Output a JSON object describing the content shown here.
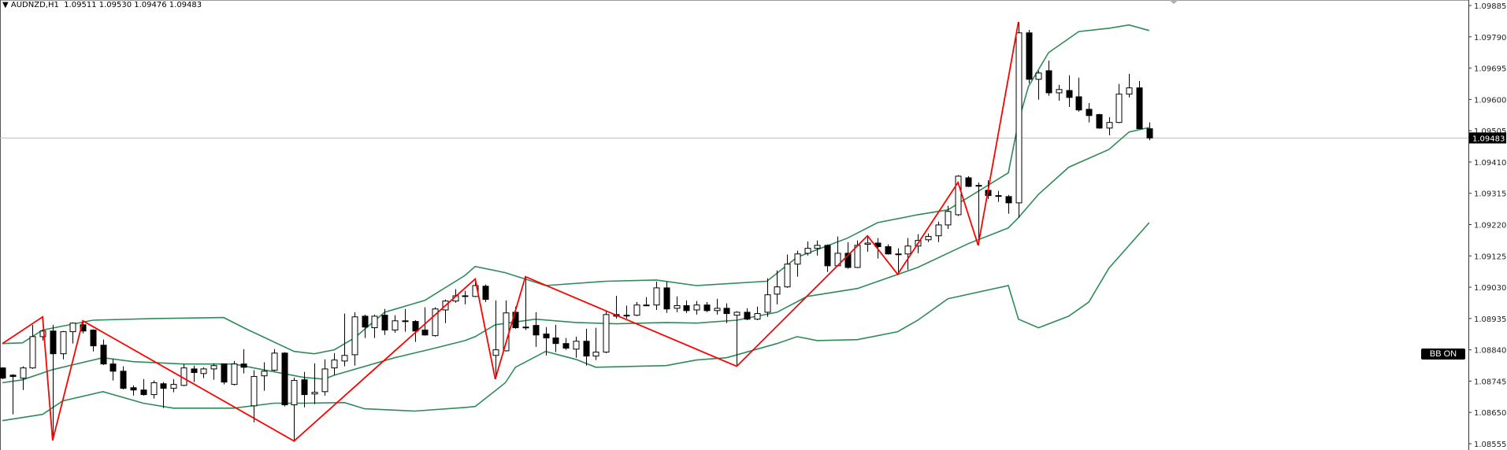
{
  "header": {
    "symbol_timeframe": "AUDNZD,H1",
    "ohlc": "1.09511 1.09530 1.09476 1.09483",
    "menu_icon": "triangle-down-icon"
  },
  "bb_button": {
    "label": "BB ON"
  },
  "current_price_label": "1.09483",
  "colors": {
    "candle_bear": "#000000",
    "candle_bull": "#ffffff",
    "candle_outline": "#000000",
    "bollinger": "#2e8b57",
    "zigzag": "#ff0000",
    "price_line": "#c0c0c0"
  },
  "chart_data": {
    "type": "candlestick",
    "symbol": "AUDNZD",
    "timeframe": "H1",
    "ylim": [
      1.08555,
      1.09885
    ],
    "y_ticks": [
      "1.09885",
      "1.09790",
      "1.09695",
      "1.09600",
      "1.09505",
      "1.09410",
      "1.09315",
      "1.09220",
      "1.09125",
      "1.09030",
      "1.08935",
      "1.08840",
      "1.08745",
      "1.08650",
      "1.08555"
    ],
    "current_price": 1.09483,
    "candles_ohlc": [
      [
        1.08785,
        1.08787,
        1.08751,
        1.08754
      ],
      [
        1.08763,
        1.08766,
        1.08644,
        1.08759
      ],
      [
        1.08754,
        1.0879,
        1.08718,
        1.08785
      ],
      [
        1.08785,
        1.08916,
        1.08782,
        1.0888
      ],
      [
        1.0888,
        1.089,
        1.08868,
        1.08897
      ],
      [
        1.08897,
        1.08916,
        1.08565,
        1.08828
      ],
      [
        1.08828,
        1.08897,
        1.08811,
        1.08895
      ],
      [
        1.08895,
        1.08923,
        1.08859,
        1.08921
      ],
      [
        1.08916,
        1.08928,
        1.0889,
        1.08897
      ],
      [
        1.089,
        1.08902,
        1.08835,
        1.08852
      ],
      [
        1.08854,
        1.08871,
        1.08794,
        1.08797
      ],
      [
        1.08797,
        1.08813,
        1.08747,
        1.08775
      ],
      [
        1.08775,
        1.0879,
        1.0872,
        1.08723
      ],
      [
        1.08725,
        1.08732,
        1.08701,
        1.08718
      ],
      [
        1.08718,
        1.08751,
        1.08701,
        1.08704
      ],
      [
        1.08704,
        1.08747,
        1.08692,
        1.0874
      ],
      [
        1.08737,
        1.08742,
        1.08663,
        1.08723
      ],
      [
        1.08723,
        1.08751,
        1.08711,
        1.08735
      ],
      [
        1.08732,
        1.08797,
        1.0873,
        1.08785
      ],
      [
        1.08782,
        1.08792,
        1.08742,
        1.08771
      ],
      [
        1.08768,
        1.08787,
        1.08754,
        1.08782
      ],
      [
        1.08782,
        1.08799,
        1.08749,
        1.08792
      ],
      [
        1.08797,
        1.08799,
        1.08735,
        1.08742
      ],
      [
        1.08735,
        1.08806,
        1.08732,
        1.08797
      ],
      [
        1.08797,
        1.08842,
        1.08768,
        1.08787
      ],
      [
        1.0867,
        1.08778,
        1.0862,
        1.08759
      ],
      [
        1.08761,
        1.08802,
        1.08716,
        1.08775
      ],
      [
        1.08778,
        1.08842,
        1.08775,
        1.0883
      ],
      [
        1.0883,
        1.08833,
        1.08668,
        1.08673
      ],
      [
        1.08673,
        1.08756,
        1.08563,
        1.08747
      ],
      [
        1.08749,
        1.08773,
        1.08665,
        1.08704
      ],
      [
        1.08706,
        1.08799,
        1.08675,
        1.08711
      ],
      [
        1.08713,
        1.08811,
        1.08701,
        1.08782
      ],
      [
        1.08785,
        1.0883,
        1.08763,
        1.08809
      ],
      [
        1.08806,
        1.0895,
        1.0879,
        1.08823
      ],
      [
        1.08825,
        1.08954,
        1.08792,
        1.0894
      ],
      [
        1.08942,
        1.08947,
        1.08876,
        1.08909
      ],
      [
        1.08907,
        1.08947,
        1.08876,
        1.08942
      ],
      [
        1.08945,
        1.08964,
        1.08885,
        1.089
      ],
      [
        1.089,
        1.08945,
        1.08892,
        1.08928
      ],
      [
        1.08928,
        1.08964,
        1.08895,
        1.08927
      ],
      [
        1.08926,
        1.0893,
        1.08864,
        1.08897
      ],
      [
        1.089,
        1.08969,
        1.08883,
        1.08885
      ],
      [
        1.08883,
        1.08969,
        1.0888,
        1.08964
      ],
      [
        1.08961,
        1.08993,
        1.08921,
        1.08988
      ],
      [
        1.08988,
        1.09024,
        1.08983,
        1.09004
      ],
      [
        1.09004,
        1.09019,
        1.08978,
        1.09003
      ],
      [
        1.09002,
        1.09055,
        1.09,
        1.09035
      ],
      [
        1.09033,
        1.09038,
        1.08985,
        1.08993
      ],
      [
        1.08823,
        1.0899,
        1.08751,
        1.0884
      ],
      [
        1.08837,
        1.0899,
        1.08835,
        1.08952
      ],
      [
        1.08954,
        1.08971,
        1.08904,
        1.08907
      ],
      [
        1.08909,
        1.09062,
        1.089,
        1.08908
      ],
      [
        1.08914,
        1.08954,
        1.08849,
        1.08885
      ],
      [
        1.08888,
        1.08909,
        1.08823,
        1.08876
      ],
      [
        1.08876,
        1.08916,
        1.08833,
        1.08859
      ],
      [
        1.08859,
        1.08876,
        1.0884,
        1.08845
      ],
      [
        1.08842,
        1.0888,
        1.08816,
        1.08866
      ],
      [
        1.08866,
        1.08904,
        1.08792,
        1.08821
      ],
      [
        1.08821,
        1.08907,
        1.08809,
        1.08833
      ],
      [
        1.08833,
        1.08959,
        1.0883,
        1.08947
      ],
      [
        1.08947,
        1.09004,
        1.08935,
        1.08942
      ],
      [
        1.08945,
        1.08974,
        1.08935,
        1.08944
      ],
      [
        1.08945,
        1.08985,
        1.08942,
        1.08976
      ],
      [
        1.08976,
        1.09,
        1.08974,
        1.08975
      ],
      [
        1.08976,
        1.09047,
        1.08961,
        1.09028
      ],
      [
        1.09028,
        1.09047,
        1.08952,
        1.08964
      ],
      [
        1.08966,
        1.09002,
        1.08954,
        1.08974
      ],
      [
        1.08974,
        1.0899,
        1.08952,
        1.08959
      ],
      [
        1.08961,
        1.08988,
        1.08947,
        1.08976
      ],
      [
        1.08976,
        1.08985,
        1.08954,
        1.08959
      ],
      [
        1.08959,
        1.08995,
        1.08947,
        1.08966
      ],
      [
        1.08966,
        1.08981,
        1.08921,
        1.0895
      ],
      [
        1.08945,
        1.08957,
        1.0879,
        1.08954
      ],
      [
        1.08954,
        1.08966,
        1.0893,
        1.08933
      ],
      [
        1.08933,
        1.08971,
        1.0893,
        1.0895
      ],
      [
        1.08954,
        1.09057,
        1.0894,
        1.09007
      ],
      [
        1.09009,
        1.09081,
        1.08978,
        1.09031
      ],
      [
        1.09031,
        1.09129,
        1.09028,
        1.091
      ],
      [
        1.091,
        1.09141,
        1.09062,
        1.09131
      ],
      [
        1.09133,
        1.09169,
        1.09126,
        1.09148
      ],
      [
        1.09148,
        1.09172,
        1.09126,
        1.09157
      ],
      [
        1.09157,
        1.0916,
        1.09076,
        1.09095
      ],
      [
        1.09095,
        1.09184,
        1.09093,
        1.09133
      ],
      [
        1.09133,
        1.09167,
        1.09086,
        1.0909
      ],
      [
        1.0909,
        1.09172,
        1.09088,
        1.09157
      ],
      [
        1.0916,
        1.09186,
        1.09138,
        1.09164
      ],
      [
        1.09164,
        1.09179,
        1.09117,
        1.09153
      ],
      [
        1.09153,
        1.0916,
        1.09129,
        1.09131
      ],
      [
        1.09131,
        1.09148,
        1.09069,
        1.0913
      ],
      [
        1.09131,
        1.09179,
        1.09083,
        1.09155
      ],
      [
        1.09155,
        1.09191,
        1.09133,
        1.09172
      ],
      [
        1.09174,
        1.09193,
        1.09167,
        1.09184
      ],
      [
        1.09186,
        1.09229,
        1.09167,
        1.09219
      ],
      [
        1.09219,
        1.09277,
        1.09207,
        1.0926
      ],
      [
        1.0925,
        1.0937,
        1.09246,
        1.09367
      ],
      [
        1.09362,
        1.09367,
        1.09334,
        1.09336
      ],
      [
        1.09339,
        1.09348,
        1.09157,
        1.09338
      ],
      [
        1.09324,
        1.09355,
        1.09298,
        1.09308
      ],
      [
        1.09308,
        1.09322,
        1.09289,
        1.09307
      ],
      [
        1.09305,
        1.0931,
        1.09253,
        1.09286
      ],
      [
        1.09286,
        1.09835,
        1.09241,
        1.09802
      ],
      [
        1.09802,
        1.09811,
        1.09649,
        1.09661
      ],
      [
        1.09661,
        1.09687,
        1.09599,
        1.0968
      ],
      [
        1.09687,
        1.09718,
        1.09611,
        1.0962
      ],
      [
        1.0962,
        1.09644,
        1.09596,
        1.0963
      ],
      [
        1.09627,
        1.09673,
        1.09577,
        1.09606
      ],
      [
        1.09608,
        1.09666,
        1.09563,
        1.09568
      ],
      [
        1.0957,
        1.09589,
        1.0953,
        1.09551
      ],
      [
        1.09554,
        1.09556,
        1.09511,
        1.09513
      ],
      [
        1.09513,
        1.09546,
        1.09491,
        1.0953
      ],
      [
        1.0953,
        1.09647,
        1.09528,
        1.09616
      ],
      [
        1.09616,
        1.09678,
        1.09606,
        1.09635
      ],
      [
        1.09635,
        1.09656,
        1.09511,
        1.09511
      ],
      [
        1.09511,
        1.0953,
        1.09476,
        1.09483
      ]
    ],
    "bollinger_upper": [
      [
        0,
        1.08859
      ],
      [
        2,
        1.08861
      ],
      [
        4,
        1.089
      ],
      [
        9,
        1.0893
      ],
      [
        15,
        1.08935
      ],
      [
        22,
        1.08938
      ],
      [
        24,
        1.08907
      ],
      [
        29,
        1.08835
      ],
      [
        31,
        1.08828
      ],
      [
        33,
        1.0884
      ],
      [
        35,
        1.08876
      ],
      [
        38,
        1.08954
      ],
      [
        42,
        1.0899
      ],
      [
        46,
        1.09066
      ],
      [
        47,
        1.09093
      ],
      [
        50,
        1.09074
      ],
      [
        54,
        1.09035
      ],
      [
        60,
        1.09048
      ],
      [
        65,
        1.09052
      ],
      [
        69,
        1.09035
      ],
      [
        76,
        1.09048
      ],
      [
        79,
        1.09121
      ],
      [
        84,
        1.09179
      ],
      [
        87,
        1.09226
      ],
      [
        91,
        1.0925
      ],
      [
        94,
        1.09265
      ],
      [
        100,
        1.09377
      ],
      [
        101,
        1.09532
      ],
      [
        102,
        1.09639
      ],
      [
        104,
        1.09742
      ],
      [
        107,
        1.09806
      ],
      [
        110,
        1.09816
      ],
      [
        112,
        1.09826
      ],
      [
        114,
        1.09809
      ]
    ],
    "bollinger_middle": [
      [
        0,
        1.0874
      ],
      [
        2,
        1.08749
      ],
      [
        5,
        1.0878
      ],
      [
        10,
        1.08816
      ],
      [
        13,
        1.08804
      ],
      [
        18,
        1.08797
      ],
      [
        23,
        1.08797
      ],
      [
        25,
        1.08785
      ],
      [
        30,
        1.08756
      ],
      [
        32,
        1.08751
      ],
      [
        33,
        1.08763
      ],
      [
        39,
        1.08816
      ],
      [
        43,
        1.08845
      ],
      [
        46,
        1.08868
      ],
      [
        47,
        1.0888
      ],
      [
        49,
        1.08916
      ],
      [
        53,
        1.08933
      ],
      [
        57,
        1.08923
      ],
      [
        61,
        1.08919
      ],
      [
        66,
        1.08923
      ],
      [
        69,
        1.08921
      ],
      [
        73,
        1.0893
      ],
      [
        77,
        1.08954
      ],
      [
        80,
        1.09002
      ],
      [
        85,
        1.09026
      ],
      [
        91,
        1.0909
      ],
      [
        96,
        1.09162
      ],
      [
        100,
        1.0921
      ],
      [
        101,
        1.09241
      ],
      [
        103,
        1.09312
      ],
      [
        106,
        1.09394
      ],
      [
        110,
        1.09448
      ],
      [
        112,
        1.09501
      ],
      [
        114,
        1.09515
      ]
    ],
    "bollinger_lower": [
      [
        0,
        1.08625
      ],
      [
        4,
        1.08644
      ],
      [
        6,
        1.08685
      ],
      [
        10,
        1.08713
      ],
      [
        14,
        1.08678
      ],
      [
        17,
        1.08663
      ],
      [
        23,
        1.08663
      ],
      [
        27,
        1.08678
      ],
      [
        30,
        1.08678
      ],
      [
        34,
        1.0868
      ],
      [
        36,
        1.08661
      ],
      [
        41,
        1.08654
      ],
      [
        46,
        1.08665
      ],
      [
        47,
        1.08668
      ],
      [
        50,
        1.0874
      ],
      [
        51,
        1.08787
      ],
      [
        54,
        1.08835
      ],
      [
        57,
        1.08811
      ],
      [
        59,
        1.08787
      ],
      [
        66,
        1.08792
      ],
      [
        69,
        1.08809
      ],
      [
        72,
        1.08816
      ],
      [
        77,
        1.08859
      ],
      [
        79,
        1.0888
      ],
      [
        81,
        1.08868
      ],
      [
        85,
        1.08871
      ],
      [
        89,
        1.08895
      ],
      [
        91,
        1.0893
      ],
      [
        94,
        1.08995
      ],
      [
        100,
        1.09035
      ],
      [
        101,
        1.08933
      ],
      [
        103,
        1.08907
      ],
      [
        106,
        1.08942
      ],
      [
        108,
        1.08985
      ],
      [
        110,
        1.09088
      ],
      [
        114,
        1.09226
      ]
    ],
    "zigzag": [
      [
        0,
        1.08859
      ],
      [
        4,
        1.0894
      ],
      [
        5,
        1.08565
      ],
      [
        8,
        1.08928
      ],
      [
        29,
        1.08563
      ],
      [
        47,
        1.09055
      ],
      [
        49,
        1.08751
      ],
      [
        52,
        1.09062
      ],
      [
        73,
        1.0879
      ],
      [
        86,
        1.09186
      ],
      [
        89,
        1.09069
      ],
      [
        95,
        1.09348
      ],
      [
        97,
        1.09157
      ],
      [
        101,
        1.09835
      ]
    ]
  }
}
